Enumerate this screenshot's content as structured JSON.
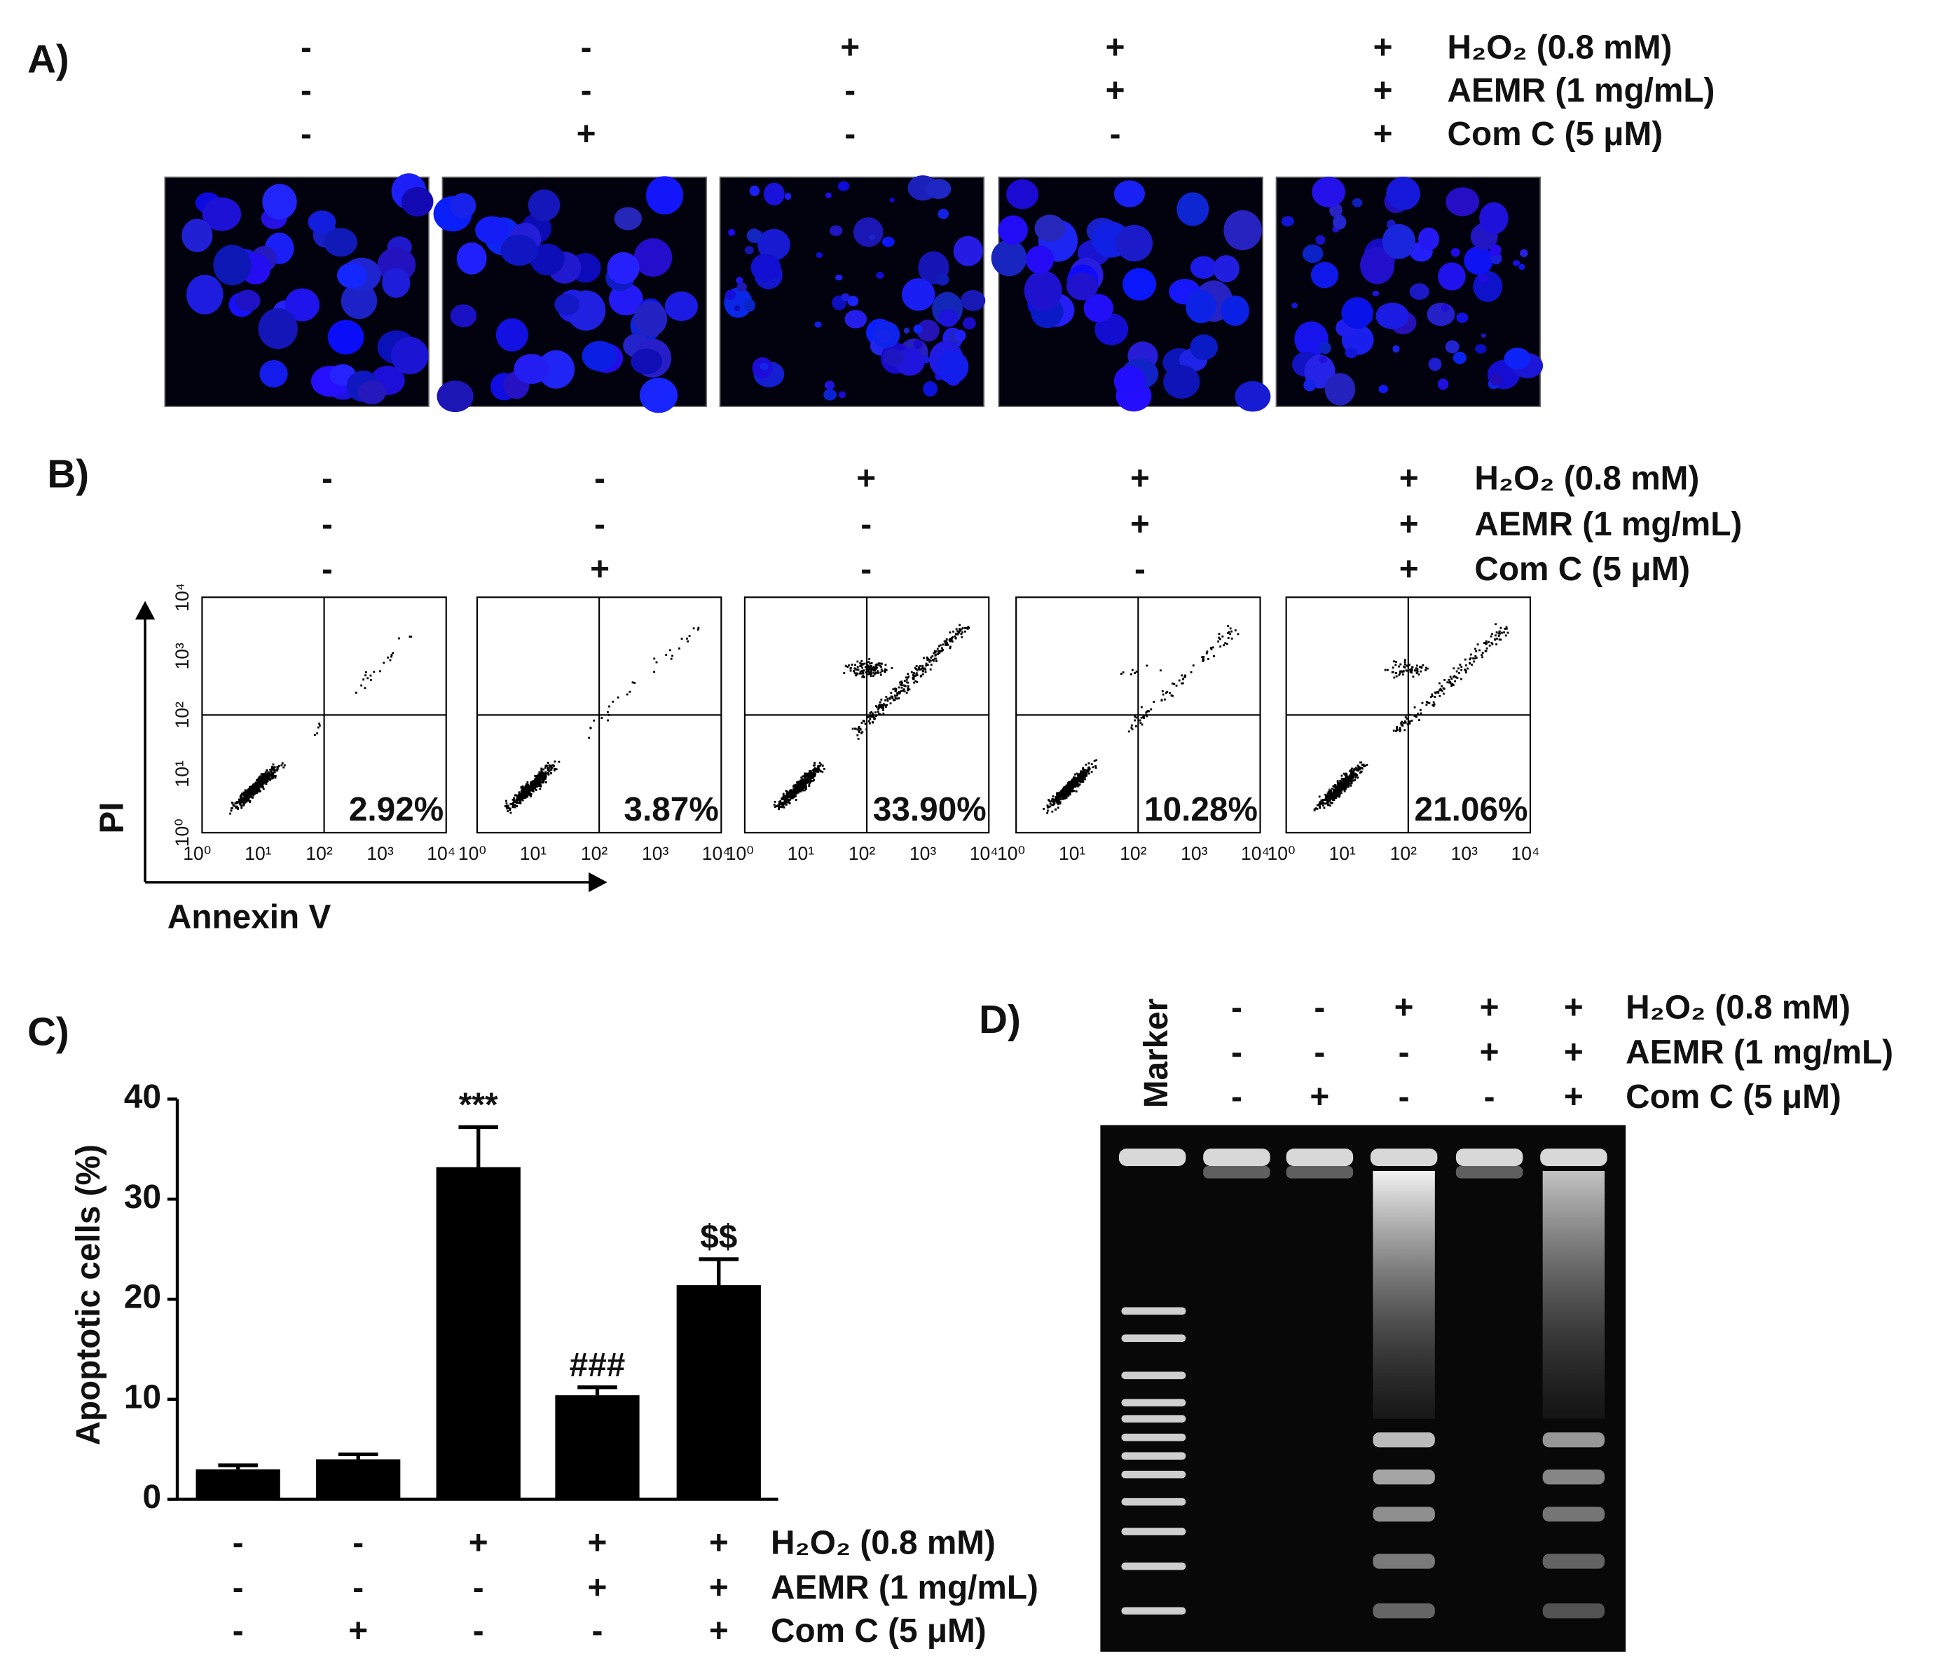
{
  "treatments": {
    "names": [
      "H₂O₂ (0.8 mM)",
      "AEMR (1 mg/mL)",
      "Com C (5 μM)"
    ],
    "signs": [
      [
        "-",
        "-",
        "+",
        "+",
        "+"
      ],
      [
        "-",
        "-",
        "-",
        "+",
        "+"
      ],
      [
        "-",
        "+",
        "-",
        "-",
        "+"
      ]
    ]
  },
  "panel_a": {
    "label": "A)"
  },
  "panel_b": {
    "label": "B)",
    "x_label": "Annexin V",
    "y_label": "PI",
    "axis_ticks": [
      "10⁰",
      "10¹",
      "10²",
      "10³",
      "10⁴"
    ],
    "percentages": [
      "2.92%",
      "3.87%",
      "33.90%",
      "10.28%",
      "21.06%"
    ]
  },
  "chart_data": {
    "type": "bar",
    "label": "C)",
    "ylabel": "Apoptotic cells (%)",
    "categories": [
      null,
      null,
      null,
      null,
      null
    ],
    "values": [
      3.0,
      4.0,
      33.2,
      10.4,
      21.4
    ],
    "errors": [
      0.4,
      0.5,
      4.0,
      0.8,
      2.6
    ],
    "annotations": [
      null,
      null,
      "***",
      "###",
      "$$"
    ],
    "color": "#000000",
    "ylim": [
      0,
      40
    ],
    "yticks": [
      0,
      10,
      20,
      30,
      40
    ]
  },
  "panel_d": {
    "label": "D)",
    "marker_label": "Marker"
  }
}
